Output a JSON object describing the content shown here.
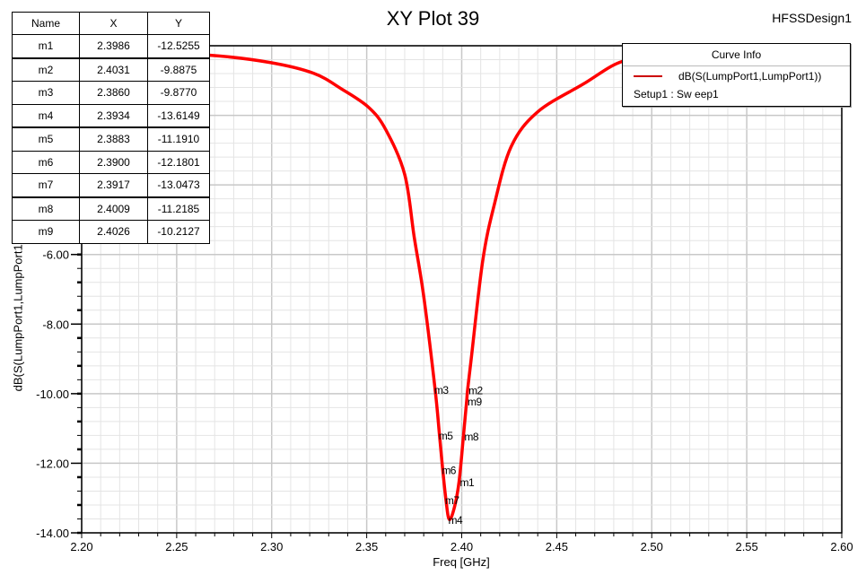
{
  "header": {
    "title": "XY Plot 39",
    "design_name": "HFSSDesign1"
  },
  "marker_table": {
    "columns": [
      "Name",
      "X",
      "Y"
    ],
    "rows": [
      {
        "name": "m1",
        "x": "2.3986",
        "y": "-12.5255"
      },
      {
        "name": "m2",
        "x": "2.4031",
        "y": "-9.8875"
      },
      {
        "name": "m3",
        "x": "2.3860",
        "y": "-9.8770"
      },
      {
        "name": "m4",
        "x": "2.3934",
        "y": "-13.6149"
      },
      {
        "name": "m5",
        "x": "2.3883",
        "y": "-11.1910"
      },
      {
        "name": "m6",
        "x": "2.3900",
        "y": "-12.1801"
      },
      {
        "name": "m7",
        "x": "2.3917",
        "y": "-13.0473"
      },
      {
        "name": "m8",
        "x": "2.4009",
        "y": "-11.2185"
      },
      {
        "name": "m9",
        "x": "2.4026",
        "y": "-10.2127"
      }
    ]
  },
  "legend": {
    "header": "Curve Info",
    "entries": [
      {
        "label": "dB(S(LumpPort1,LumpPort1))",
        "sublabel": "Setup1 : Sw eep1",
        "color": "#cc0000"
      }
    ]
  },
  "chart_data": {
    "type": "line",
    "title": "XY Plot 39",
    "subtitle": "HFSSDesign1",
    "xlabel": "Freq [GHz]",
    "ylabel": "dB(S(LumpPort1,LumpPort1))",
    "xlim": [
      2.2,
      2.6
    ],
    "ylim": [
      -14.0,
      0.0
    ],
    "x_ticks": [
      "2.20",
      "2.25",
      "2.30",
      "2.35",
      "2.40",
      "2.45",
      "2.50",
      "2.55",
      "2.60"
    ],
    "y_ticks": [
      "-14.00",
      "-12.00",
      "-10.00",
      "-8.00",
      "-6.00"
    ],
    "grid": true,
    "legend_position": "top-right",
    "series": [
      {
        "name": "dB(S(LumpPort1,LumpPort1))",
        "color": "#ff0000",
        "x": [
          2.2,
          2.23,
          2.267,
          2.299,
          2.322,
          2.337,
          2.351,
          2.36,
          2.37,
          2.375,
          2.38,
          2.386,
          2.3883,
          2.39,
          2.3917,
          2.3934,
          2.396,
          2.3986,
          2.4009,
          2.4026,
          2.4031,
          2.405,
          2.411,
          2.417,
          2.426,
          2.44,
          2.464,
          2.483,
          2.5,
          2.55,
          2.6
        ],
        "values": [
          -0.15,
          -0.2,
          -0.27,
          -0.48,
          -0.79,
          -1.25,
          -1.77,
          -2.41,
          -3.7,
          -5.5,
          -7.2,
          -9.88,
          -11.19,
          -12.18,
          -13.05,
          -13.61,
          -13.3,
          -12.53,
          -11.22,
          -10.21,
          -9.89,
          -9.0,
          -6.2,
          -4.6,
          -2.9,
          -1.9,
          -1.1,
          -0.48,
          -0.35,
          -0.2,
          -0.12
        ]
      }
    ],
    "markers": [
      {
        "name": "m1",
        "x": 2.3986,
        "y": -12.5255
      },
      {
        "name": "m2",
        "x": 2.4031,
        "y": -9.8875
      },
      {
        "name": "m3",
        "x": 2.386,
        "y": -9.877
      },
      {
        "name": "m4",
        "x": 2.3934,
        "y": -13.6149
      },
      {
        "name": "m5",
        "x": 2.3883,
        "y": -11.191
      },
      {
        "name": "m6",
        "x": 2.39,
        "y": -12.1801
      },
      {
        "name": "m7",
        "x": 2.3917,
        "y": -13.0473
      },
      {
        "name": "m8",
        "x": 2.4009,
        "y": -11.2185
      },
      {
        "name": "m9",
        "x": 2.4026,
        "y": -10.2127
      }
    ]
  }
}
